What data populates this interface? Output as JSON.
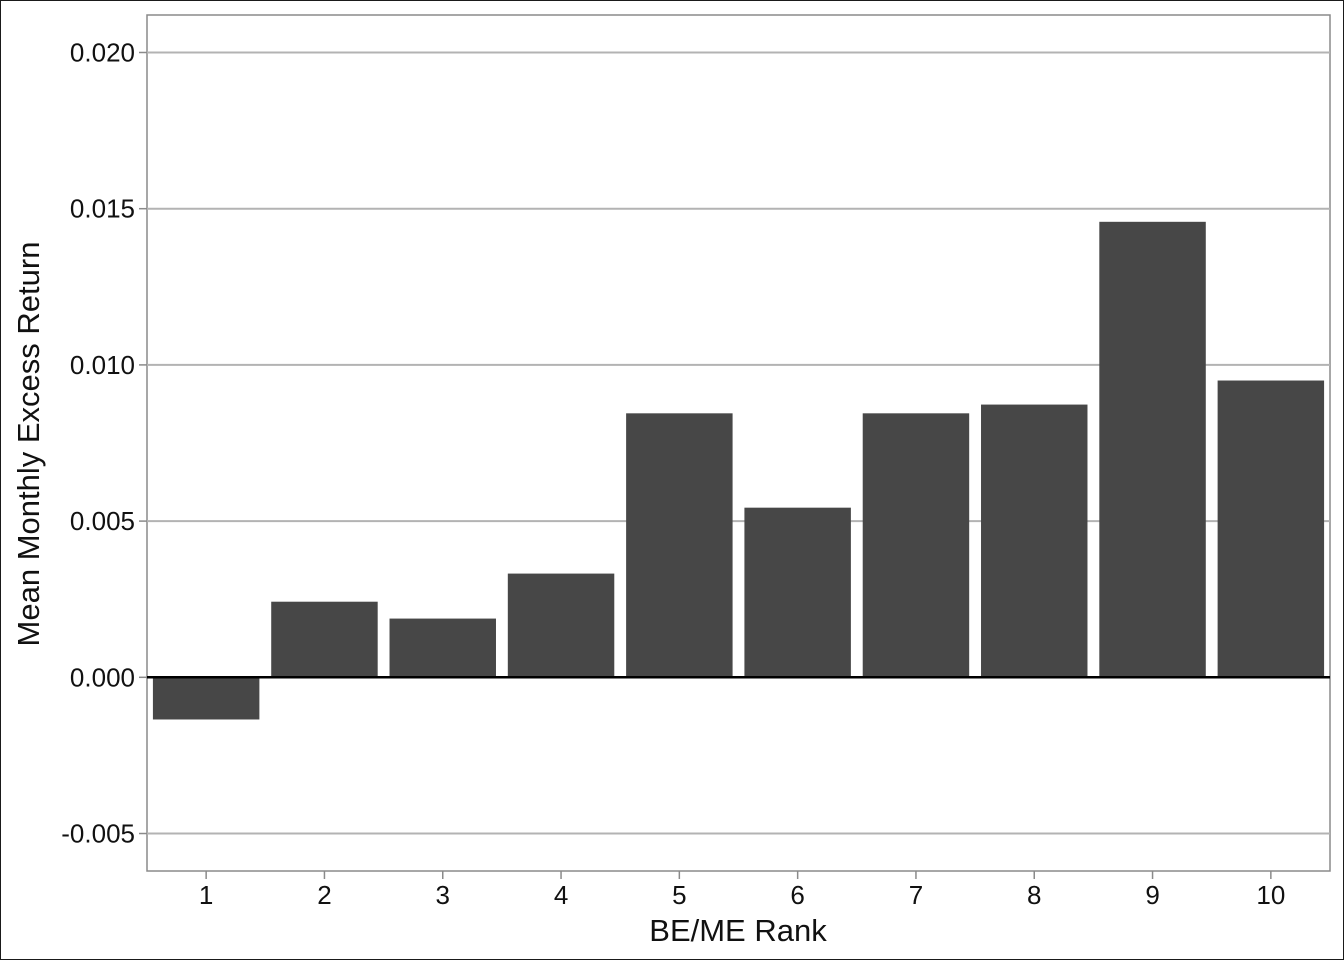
{
  "chart_data": {
    "type": "bar",
    "title": "",
    "xlabel": "BE/ME Rank",
    "ylabel": "Mean Monthly Excess Return",
    "categories": [
      "1",
      "2",
      "3",
      "4",
      "5",
      "6",
      "7",
      "8",
      "9",
      "10"
    ],
    "values": [
      -0.00135,
      0.00242,
      0.00188,
      0.00332,
      0.00845,
      0.00543,
      0.00845,
      0.00873,
      0.01458,
      0.0095
    ],
    "ylim": [
      -0.0062,
      0.0212
    ],
    "yticks": [
      -0.005,
      0.0,
      0.005,
      0.01,
      0.015,
      0.02
    ],
    "ytick_labels": [
      "-0.005",
      "0.000",
      "0.005",
      "0.010",
      "0.015",
      "0.020"
    ],
    "grid": true,
    "bar_color": "#474747",
    "grid_color": "#b3b3b3",
    "zero_line_color": "#000000"
  }
}
